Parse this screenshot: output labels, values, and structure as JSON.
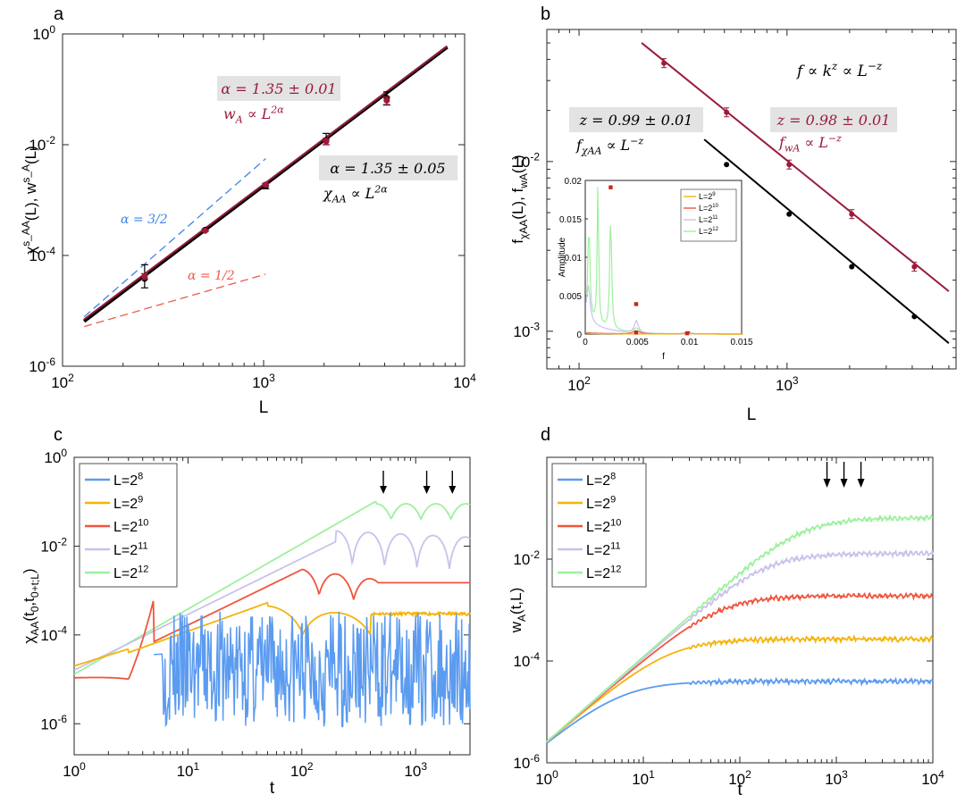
{
  "figure": {
    "panel_labels": [
      "a",
      "b",
      "c",
      "d"
    ],
    "colors": {
      "black": "#000000",
      "crimson": "#9b1b3a",
      "blue_dash": "#3d85e6",
      "red_dash": "#f05a4a",
      "L8": "#5b9bf0",
      "L9": "#f5b30a",
      "L10": "#f0553d",
      "L11": "#c9c2ea",
      "L12": "#9ef09e"
    }
  },
  "chart_data": [
    {
      "panel": "a",
      "type": "scatter",
      "xscale": "log",
      "yscale": "log",
      "xlim": [
        100,
        10000
      ],
      "ylim": [
        1e-06,
        1
      ],
      "xlabel": "L",
      "ylabel": "χ^s_AA(L), w^s_A(L)",
      "xticks": [
        "10^2",
        "10^3",
        "10^4"
      ],
      "yticks": [
        "10^-6",
        "10^-4",
        "10^-2",
        "10^0"
      ],
      "series": [
        {
          "name": "χ_AA",
          "color": "#000000",
          "x": [
            256,
            512,
            1024,
            2048,
            4096
          ],
          "y": [
            3.8e-05,
            0.00029,
            0.0018,
            0.012,
            0.07
          ],
          "err_low": [
            1.2e-05,
            1e-05,
            0.0002,
            0.002,
            0.018
          ],
          "err_high": [
            3e-05,
            1e-05,
            0.0002,
            0.004,
            0.02
          ]
        },
        {
          "name": "w_A",
          "color": "#9b1b3a",
          "x": [
            256,
            512,
            1024,
            2048,
            4096
          ],
          "y": [
            4.2e-05,
            0.00028,
            0.0019,
            0.0115,
            0.063
          ],
          "err_low": [
            5e-06,
            1e-05,
            0.0001,
            0.0015,
            0.01
          ],
          "err_high": [
            5e-06,
            1e-05,
            0.0001,
            0.0015,
            0.01
          ]
        }
      ],
      "fits": [
        {
          "color": "#000000",
          "x": [
            128,
            8192
          ],
          "y": [
            6.5e-06,
            0.58
          ]
        },
        {
          "color": "#9b1b3a",
          "x": [
            128,
            8192
          ],
          "y": [
            7e-06,
            0.6
          ]
        }
      ],
      "guides": [
        {
          "color": "#3d85e6",
          "x": [
            128,
            1024
          ],
          "y": [
            7.8e-06,
            0.0056
          ]
        },
        {
          "color": "#f05a4a",
          "x": [
            128,
            1024
          ],
          "y": [
            5.2e-06,
            4.6e-05
          ]
        }
      ],
      "annotations": {
        "wA_alpha": "α = 1.35 ± 0.01",
        "wA_scaling": "w_A ∝ L^2α",
        "chi_alpha": "α = 1.35 ± 0.05",
        "chi_scaling": "χ_AA ∝ L^2α",
        "alpha_3_2": "α = 3/2",
        "alpha_1_2": "α = 1/2"
      }
    },
    {
      "panel": "b",
      "type": "scatter",
      "xscale": "log",
      "yscale": "log",
      "xlim": [
        70,
        6500
      ],
      "ylim": [
        0.0006,
        0.06
      ],
      "xlabel": "L",
      "ylabel": "f_χAA(L), f_wA(L)",
      "xticks": [
        "10^2",
        "10^3"
      ],
      "yticks": [
        "10^-3",
        "10^-2"
      ],
      "series": [
        {
          "name": "f_wA",
          "color": "#9b1b3a",
          "x": [
            256,
            512,
            1024,
            2048,
            4096
          ],
          "y": [
            0.038,
            0.0195,
            0.0096,
            0.0049,
            0.0024
          ]
        },
        {
          "name": "f_χAA",
          "color": "#000000",
          "x": [
            512,
            1024,
            2048,
            4096
          ],
          "y": [
            0.0096,
            0.0049,
            0.0024,
            0.00122
          ]
        }
      ],
      "fits": [
        {
          "color": "#9b1b3a",
          "x": [
            200,
            6000
          ],
          "y": [
            0.05,
            0.00172
          ]
        },
        {
          "color": "#000000",
          "x": [
            400,
            6000
          ],
          "y": [
            0.0135,
            0.00085
          ]
        }
      ],
      "annotations": {
        "law": "f ∝ k^z ∝ L^−z",
        "chi_z": "z = 0.99 ± 0.01",
        "chi_law": "f_χAA ∝ L^−z",
        "w_z": "z = 0.98 ± 0.01",
        "w_law": "f_wA ∝ L^−z"
      },
      "inset": {
        "type": "line",
        "xlim": [
          0,
          0.015
        ],
        "ylim": [
          0,
          0.02
        ],
        "xlabel": "f",
        "ylabel": "Amplitude",
        "xticks": [
          "0",
          "0.005",
          "0.01",
          "0.015"
        ],
        "yticks": [
          "0",
          "0.005",
          "0.01",
          "0.015",
          "0.02"
        ],
        "legend": [
          "L=2^9",
          "L=2^10",
          "L=2^11",
          "L=2^12"
        ],
        "peaks": [
          {
            "x": 0.00244,
            "y": 0.0191
          },
          {
            "x": 0.00488,
            "y": 0.0039
          },
          {
            "x": 0.00488,
            "y": 0.0002
          },
          {
            "x": 0.00977,
            "y": 0.0001
          }
        ]
      }
    },
    {
      "panel": "c",
      "type": "line",
      "xscale": "log",
      "yscale": "log",
      "xlim": [
        1,
        3000
      ],
      "ylim": [
        2e-07,
        1
      ],
      "xlabel": "t",
      "ylabel": "χ_AA(t_0,t_0+t;L)",
      "xticks": [
        "10^0",
        "10^1",
        "10^2",
        "10^3"
      ],
      "yticks": [
        "10^-6",
        "10^-4",
        "10^-2",
        "10^0"
      ],
      "legend": [
        "L=2^8",
        "L=2^9",
        "L=2^10",
        "L=2^11",
        "L=2^12"
      ],
      "arrows_t": [
        520,
        1250,
        2100
      ],
      "series": [
        {
          "name": "L=2^8",
          "plateau": 3e-05,
          "peak_t": 6
        },
        {
          "name": "L=2^9",
          "plateau": 0.0003,
          "peak_t": 50
        },
        {
          "name": "L=2^10",
          "plateau": 0.0018,
          "peak_t": 100
        },
        {
          "name": "L=2^11",
          "plateau": 0.011,
          "peak_t": 200
        },
        {
          "name": "L=2^12",
          "plateau": 0.03,
          "peak_t": 450
        }
      ]
    },
    {
      "panel": "d",
      "type": "line",
      "xscale": "log",
      "yscale": "log",
      "xlim": [
        1,
        10000
      ],
      "ylim": [
        1e-06,
        1
      ],
      "xlabel": "t",
      "ylabel": "w_A(t,L)",
      "xticks": [
        "10^0",
        "10^1",
        "10^2",
        "10^3",
        "10^4"
      ],
      "yticks": [
        "10^-6",
        "10^-4",
        "10^-2"
      ],
      "legend": [
        "L=2^8",
        "L=2^9",
        "L=2^10",
        "L=2^11",
        "L=2^12"
      ],
      "arrows_t": [
        800,
        1200,
        1800
      ],
      "series": [
        {
          "name": "L=2^8",
          "plateau": 4e-05,
          "saturation_t": 20
        },
        {
          "name": "L=2^9",
          "plateau": 0.00027,
          "saturation_t": 50
        },
        {
          "name": "L=2^10",
          "plateau": 0.0019,
          "saturation_t": 150
        },
        {
          "name": "L=2^11",
          "plateau": 0.013,
          "saturation_t": 500
        },
        {
          "name": "L=2^12",
          "plateau": 0.065,
          "saturation_t": 2000
        }
      ]
    }
  ]
}
